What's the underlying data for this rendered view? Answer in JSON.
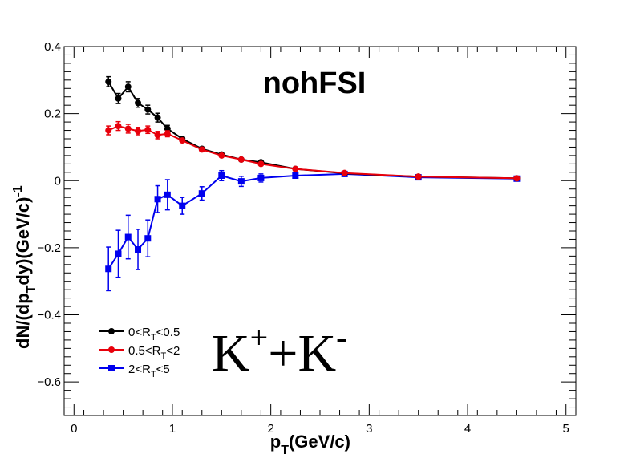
{
  "chart_data": {
    "type": "line",
    "title": "nohFSI",
    "xlabel": {
      "main": "p",
      "sub": "T",
      "rest": "(GeV/c)"
    },
    "ylabel": {
      "a": "dN/(dp",
      "sub": "T",
      "b": "dy)(GeV/c)",
      "sup": "-1"
    },
    "xlim": [
      -0.1,
      5.1
    ],
    "ylim": [
      -0.7,
      0.4
    ],
    "xticks": [
      0,
      1,
      2,
      3,
      4,
      5
    ],
    "xtick_labels": [
      "0",
      "1",
      "2",
      "3",
      "4",
      "5"
    ],
    "yticks": [
      -0.6,
      -0.4,
      -0.2,
      0,
      0.2,
      0.4
    ],
    "ytick_labels": [
      "−0.6",
      "−0.4",
      "−0.2",
      "0",
      "0.2",
      "0.4"
    ],
    "grid": false,
    "legend_position": "bottom-left",
    "annotation": {
      "k1": "K",
      "sup1": "+",
      "plus": "+",
      "k2": "K",
      "sup2": "-"
    },
    "series": [
      {
        "name": "0<R_T<0.5",
        "legend_main": "0<R",
        "legend_sub": "T",
        "legend_rest": "<0.5",
        "color": "#000000",
        "marker": "circle",
        "x": [
          0.35,
          0.45,
          0.55,
          0.65,
          0.75,
          0.85,
          0.95,
          1.1,
          1.3,
          1.5,
          1.7,
          1.9,
          2.25,
          2.75,
          3.5,
          4.5
        ],
        "y": [
          0.295,
          0.245,
          0.28,
          0.232,
          0.212,
          0.188,
          0.155,
          0.125,
          0.095,
          0.078,
          0.063,
          0.055,
          0.035,
          0.022,
          0.012,
          0.007
        ],
        "err": [
          0.015,
          0.015,
          0.015,
          0.013,
          0.013,
          0.013,
          0.01,
          0.006,
          0.005,
          0.004,
          0.004,
          0.004,
          0.003,
          0.002,
          0.002,
          0.001
        ]
      },
      {
        "name": "0.5<R_T<2",
        "legend_main": "0.5<R",
        "legend_sub": "T",
        "legend_rest": "<2",
        "color": "#e8000b",
        "marker": "circle",
        "x": [
          0.35,
          0.45,
          0.55,
          0.65,
          0.75,
          0.85,
          0.95,
          1.1,
          1.3,
          1.5,
          1.7,
          1.9,
          2.25,
          2.75,
          3.5,
          4.5
        ],
        "y": [
          0.15,
          0.163,
          0.155,
          0.148,
          0.152,
          0.136,
          0.14,
          0.12,
          0.093,
          0.075,
          0.063,
          0.05,
          0.035,
          0.023,
          0.012,
          0.007
        ],
        "err": [
          0.013,
          0.013,
          0.013,
          0.011,
          0.011,
          0.011,
          0.009,
          0.006,
          0.005,
          0.004,
          0.004,
          0.004,
          0.003,
          0.002,
          0.002,
          0.001
        ]
      },
      {
        "name": "2<R_T<5",
        "legend_main": "2<R",
        "legend_sub": "T",
        "legend_rest": "<5",
        "color": "#0000ee",
        "marker": "square",
        "x": [
          0.35,
          0.45,
          0.55,
          0.65,
          0.75,
          0.85,
          0.95,
          1.1,
          1.3,
          1.5,
          1.7,
          1.9,
          2.25,
          2.75,
          3.5,
          4.5
        ],
        "y": [
          -0.263,
          -0.218,
          -0.168,
          -0.205,
          -0.172,
          -0.055,
          -0.042,
          -0.075,
          -0.038,
          0.015,
          -0.002,
          0.008,
          0.015,
          0.02,
          0.01,
          0.006
        ],
        "err": [
          0.065,
          0.07,
          0.065,
          0.06,
          0.055,
          0.04,
          0.045,
          0.025,
          0.02,
          0.015,
          0.015,
          0.012,
          0.006,
          0.004,
          0.003,
          0.002
        ]
      }
    ]
  }
}
